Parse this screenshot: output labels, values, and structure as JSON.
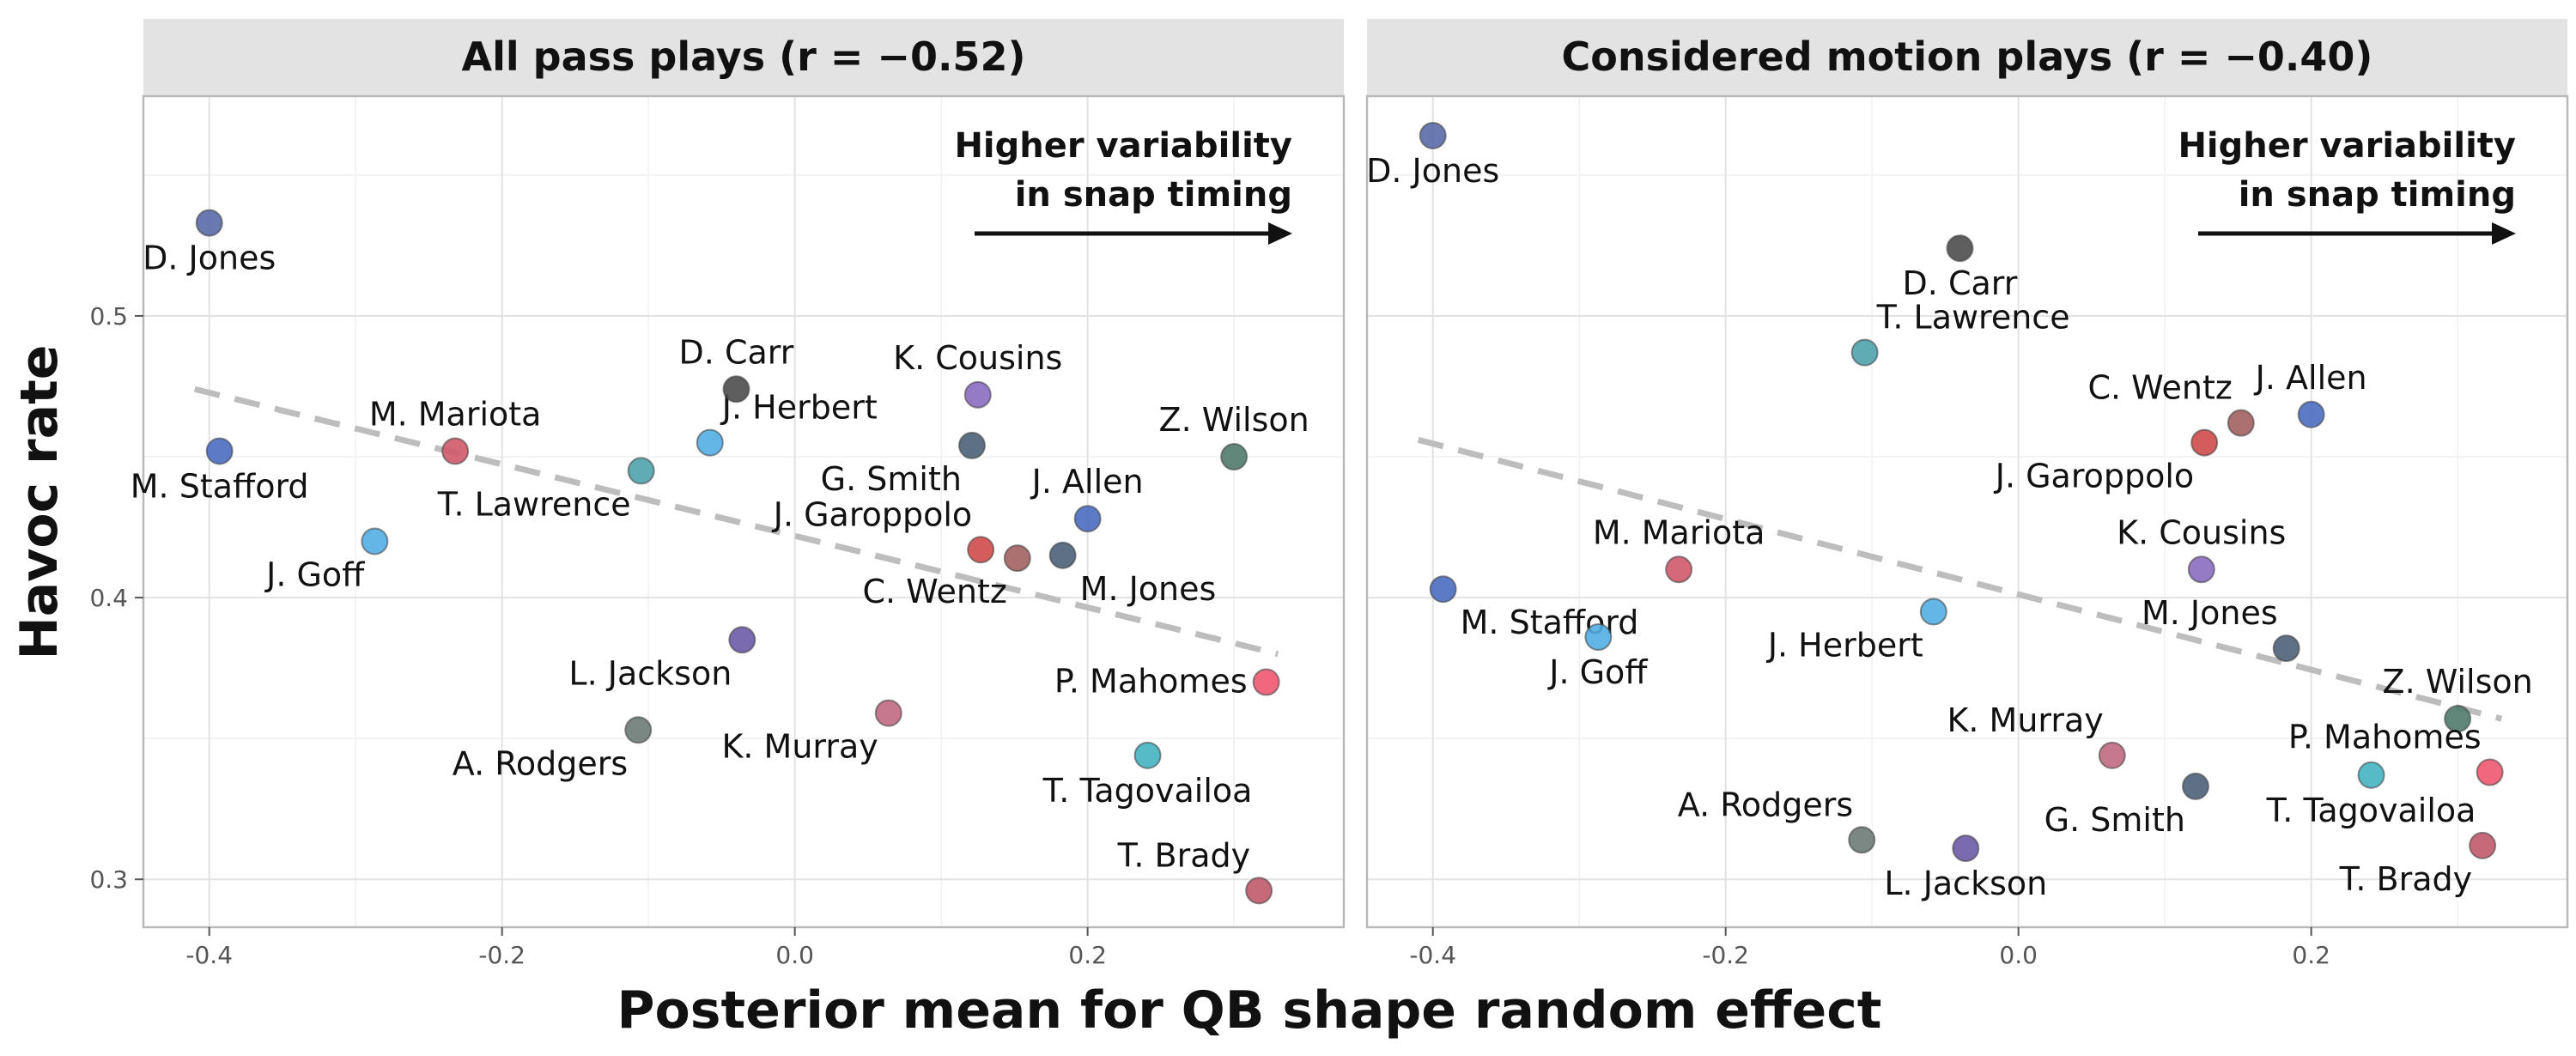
{
  "chart_data": {
    "type": "scatter",
    "xlabel": "Posterior mean for QB shape random effect",
    "ylabel": "Havoc rate",
    "xlim": [
      -0.445,
      0.375
    ],
    "ylim": [
      0.283,
      0.578
    ],
    "x_ticks": [
      -0.4,
      -0.2,
      0.0,
      0.2
    ],
    "x_tick_labels": [
      "-0.4",
      "-0.2",
      "0.0",
      "0.2"
    ],
    "y_ticks": [
      0.3,
      0.4,
      0.5
    ],
    "y_tick_labels": [
      "0.3",
      "0.4",
      "0.5"
    ],
    "grid": true,
    "annotation": {
      "lines": [
        "Higher variability",
        "in snap timing"
      ],
      "arrow": "right"
    },
    "panels": [
      {
        "title": "All pass plays (r = −0.52)",
        "trend": {
          "x0": -0.41,
          "y0": 0.474,
          "x1": 0.33,
          "y1": 0.38
        },
        "points": [
          {
            "name": "D. Jones",
            "x": -0.4,
            "y": 0.533,
            "color": "#5a6aa6",
            "label_pos": "below"
          },
          {
            "name": "M. Stafford",
            "x": -0.393,
            "y": 0.452,
            "color": "#4a6bc0",
            "label_pos": "below"
          },
          {
            "name": "J. Goff",
            "x": -0.287,
            "y": 0.42,
            "color": "#52aee3",
            "label_pos": "below-left"
          },
          {
            "name": "M. Mariota",
            "x": -0.232,
            "y": 0.452,
            "color": "#cf5a6a",
            "label_pos": "above"
          },
          {
            "name": "T. Lawrence",
            "x": -0.105,
            "y": 0.445,
            "color": "#4fa3ad",
            "label_pos": "below-left"
          },
          {
            "name": "J. Herbert",
            "x": -0.058,
            "y": 0.455,
            "color": "#52aee3",
            "label_pos": "above-right"
          },
          {
            "name": "D. Carr",
            "x": -0.04,
            "y": 0.474,
            "color": "#4d4d4d",
            "label_pos": "above"
          },
          {
            "name": "L. Jackson",
            "x": -0.036,
            "y": 0.385,
            "color": "#6b5aa6",
            "label_pos": "below-left"
          },
          {
            "name": "A. Rodgers",
            "x": -0.107,
            "y": 0.353,
            "color": "#6b7a74",
            "label_pos": "below-left"
          },
          {
            "name": "K. Murray",
            "x": 0.064,
            "y": 0.359,
            "color": "#c06a82",
            "label_pos": "below-left"
          },
          {
            "name": "K. Cousins",
            "x": 0.125,
            "y": 0.472,
            "color": "#8a6bc0",
            "label_pos": "above"
          },
          {
            "name": "G. Smith",
            "x": 0.121,
            "y": 0.454,
            "color": "#4d6078",
            "label_pos": "below-left"
          },
          {
            "name": "J. Garoppolo",
            "x": 0.127,
            "y": 0.417,
            "color": "#d04a4a",
            "label_pos": "above-left"
          },
          {
            "name": "C. Wentz",
            "x": 0.152,
            "y": 0.414,
            "color": "#a26060",
            "label_pos": "below-left"
          },
          {
            "name": "M. Jones",
            "x": 0.183,
            "y": 0.415,
            "color": "#4d6078",
            "label_pos": "below-right"
          },
          {
            "name": "J. Allen",
            "x": 0.2,
            "y": 0.428,
            "color": "#4a6bc0",
            "label_pos": "above"
          },
          {
            "name": "Z. Wilson",
            "x": 0.3,
            "y": 0.45,
            "color": "#4f7a6a",
            "label_pos": "above"
          },
          {
            "name": "P. Mahomes",
            "x": 0.322,
            "y": 0.37,
            "color": "#ee5870",
            "label_pos": "left"
          },
          {
            "name": "T. Tagovailoa",
            "x": 0.241,
            "y": 0.344,
            "color": "#44b4c0",
            "label_pos": "below"
          },
          {
            "name": "T. Brady",
            "x": 0.317,
            "y": 0.296,
            "color": "#c05a6a",
            "label_pos": "above-left"
          }
        ]
      },
      {
        "title": "Considered motion plays (r = −0.40)",
        "trend": {
          "x0": -0.41,
          "y0": 0.456,
          "x1": 0.33,
          "y1": 0.357
        },
        "points": [
          {
            "name": "D. Jones",
            "x": -0.4,
            "y": 0.564,
            "color": "#5a6aa6",
            "label_pos": "below"
          },
          {
            "name": "D. Carr",
            "x": -0.04,
            "y": 0.524,
            "color": "#4d4d4d",
            "label_pos": "below"
          },
          {
            "name": "T. Lawrence",
            "x": -0.105,
            "y": 0.487,
            "color": "#4fa3ad",
            "label_pos": "above-right"
          },
          {
            "name": "C. Wentz",
            "x": 0.152,
            "y": 0.462,
            "color": "#a26060",
            "label_pos": "above-left"
          },
          {
            "name": "J. Allen",
            "x": 0.2,
            "y": 0.465,
            "color": "#4a6bc0",
            "label_pos": "above"
          },
          {
            "name": "J. Garoppolo",
            "x": 0.127,
            "y": 0.455,
            "color": "#d04a4a",
            "label_pos": "below-left"
          },
          {
            "name": "K. Cousins",
            "x": 0.125,
            "y": 0.41,
            "color": "#8a6bc0",
            "label_pos": "above"
          },
          {
            "name": "M. Mariota",
            "x": -0.232,
            "y": 0.41,
            "color": "#cf5a6a",
            "label_pos": "above"
          },
          {
            "name": "M. Stafford",
            "x": -0.393,
            "y": 0.403,
            "color": "#4a6bc0",
            "label_pos": "below-right"
          },
          {
            "name": "J. Goff",
            "x": -0.287,
            "y": 0.386,
            "color": "#52aee3",
            "label_pos": "below"
          },
          {
            "name": "J. Herbert",
            "x": -0.058,
            "y": 0.395,
            "color": "#52aee3",
            "label_pos": "below-left"
          },
          {
            "name": "M. Jones",
            "x": 0.183,
            "y": 0.382,
            "color": "#4d6078",
            "label_pos": "above-left"
          },
          {
            "name": "Z. Wilson",
            "x": 0.3,
            "y": 0.357,
            "color": "#4f7a6a",
            "label_pos": "above"
          },
          {
            "name": "K. Murray",
            "x": 0.064,
            "y": 0.344,
            "color": "#c06a82",
            "label_pos": "above-left"
          },
          {
            "name": "P. Mahomes",
            "x": 0.322,
            "y": 0.338,
            "color": "#ee5870",
            "label_pos": "above-left"
          },
          {
            "name": "T. Tagovailoa",
            "x": 0.241,
            "y": 0.337,
            "color": "#44b4c0",
            "label_pos": "below"
          },
          {
            "name": "G. Smith",
            "x": 0.121,
            "y": 0.333,
            "color": "#4d6078",
            "label_pos": "below-left"
          },
          {
            "name": "A. Rodgers",
            "x": -0.107,
            "y": 0.314,
            "color": "#6b7a74",
            "label_pos": "above-left"
          },
          {
            "name": "L. Jackson",
            "x": -0.036,
            "y": 0.311,
            "color": "#6b5aa6",
            "label_pos": "below"
          },
          {
            "name": "T. Brady",
            "x": 0.317,
            "y": 0.312,
            "color": "#c05a6a",
            "label_pos": "below-left"
          }
        ]
      }
    ]
  }
}
